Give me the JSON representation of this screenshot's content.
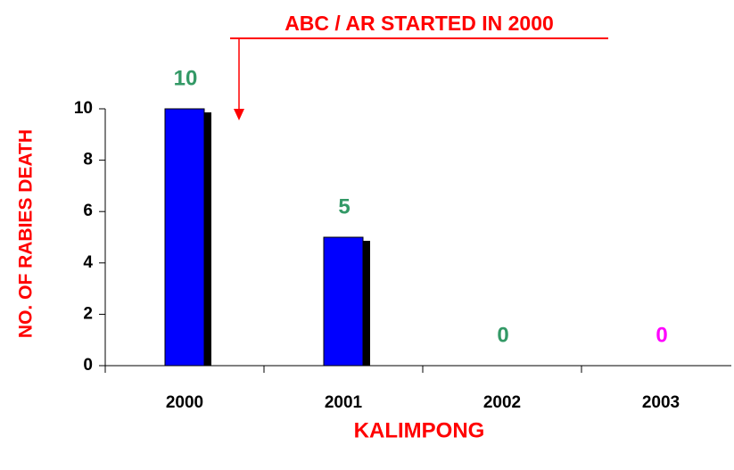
{
  "chart_data": {
    "type": "bar",
    "annotation": "ABC / AR STARTED IN 2000",
    "x_label": "KALIMPONG",
    "y_label": "NO. OF RABIES DEATH",
    "categories": [
      "2000",
      "2001",
      "2002",
      "2003"
    ],
    "values": [
      10,
      5,
      0,
      0
    ],
    "color": "#0000ff",
    "value_label_colors": [
      "#339966",
      "#339966",
      "#339966",
      "#ff00ff"
    ],
    "ylim": [
      0,
      10
    ],
    "yticks": [
      0,
      2,
      4,
      6,
      8,
      10
    ],
    "grid": false
  }
}
